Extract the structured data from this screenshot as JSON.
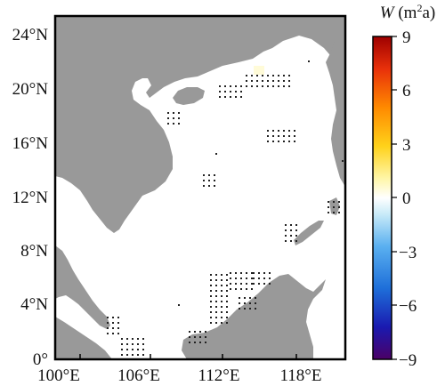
{
  "map": {
    "x_ticks": [
      "100°E",
      "106°E",
      "112°E",
      "118°E"
    ],
    "y_ticks": [
      "24°N",
      "20°N",
      "16°N",
      "12°N",
      "8°N",
      "4°N",
      "0°"
    ],
    "land_color": "#999999",
    "ocean_color": "#ffffff",
    "stipple_color": "#222222"
  },
  "colorbar": {
    "title_var": "W",
    "title_unit_open": " (m",
    "title_unit_sup": "2",
    "title_unit_close": "a)",
    "ticks": [
      "9",
      "6",
      "3",
      "0",
      "−3",
      "−6",
      "−9"
    ],
    "range": [
      -9,
      9
    ],
    "colors": [
      "#4b0066",
      "#1a1ab0",
      "#1e6fd9",
      "#5ab0f0",
      "#b8e4f8",
      "#ffffff",
      "#fff6a8",
      "#ffd21a",
      "#ff8a00",
      "#e8300a",
      "#9e0000"
    ]
  }
}
